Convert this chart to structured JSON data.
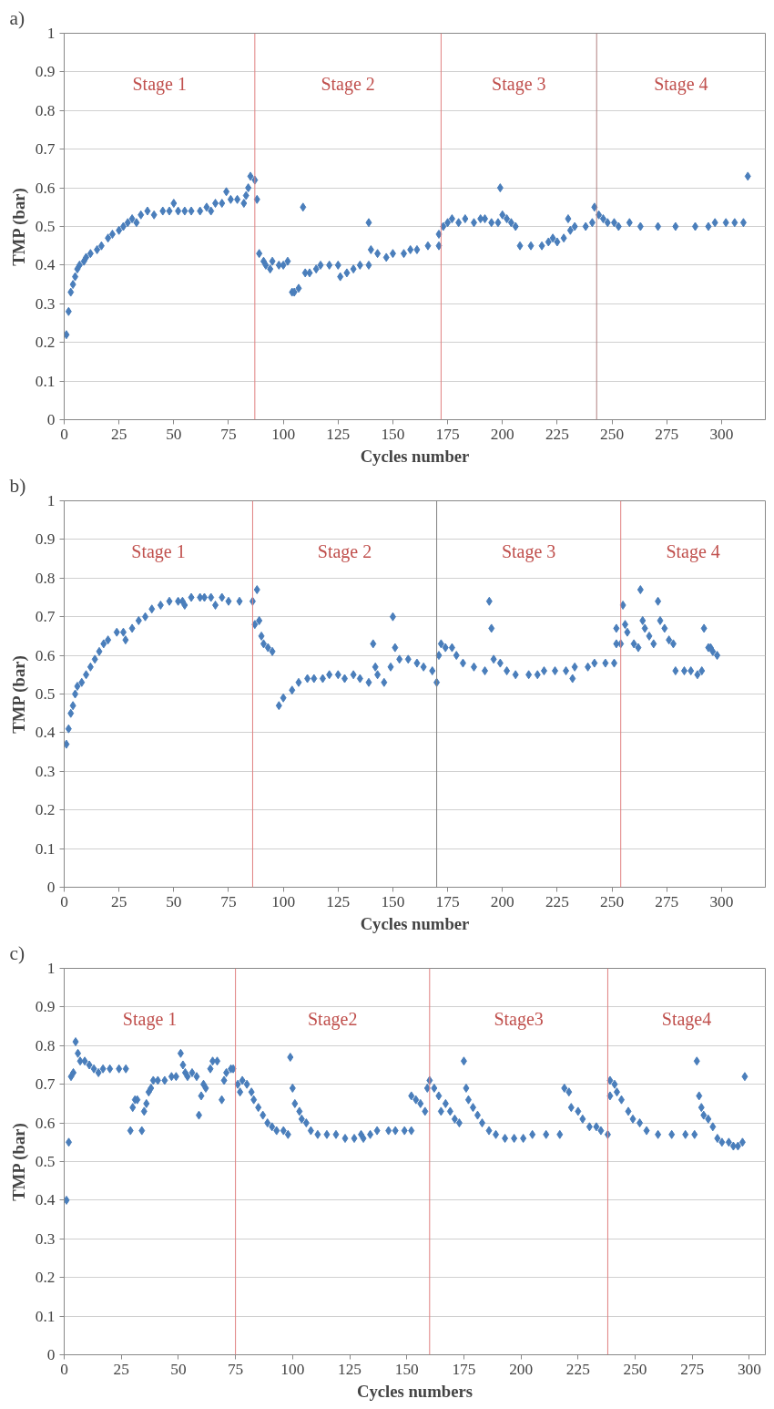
{
  "chart_data": [
    {
      "type": "scatter",
      "title": "a)",
      "xlabel": "Cycles number",
      "ylabel": "TMP (bar)",
      "xlim": [
        0,
        320
      ],
      "ylim": [
        0,
        1
      ],
      "xticks": [
        0,
        25,
        50,
        75,
        100,
        125,
        150,
        175,
        200,
        225,
        250,
        275,
        300
      ],
      "yticks": [
        0,
        0.1,
        0.2,
        0.3,
        0.4,
        0.5,
        0.6,
        0.7,
        0.8,
        0.9,
        1
      ],
      "grid": "y",
      "marker": "diamond",
      "series": [
        {
          "color": "#4a7ebb",
          "x": [
            1,
            2,
            3,
            4,
            5,
            6,
            7,
            9,
            10,
            12,
            15,
            17,
            20,
            22,
            25,
            27,
            29,
            31,
            33,
            35,
            38,
            41,
            45,
            48,
            50,
            52,
            55,
            58,
            62,
            65,
            67,
            69,
            72,
            74,
            76,
            79,
            82,
            83,
            84,
            85,
            87,
            88,
            89,
            91,
            92,
            94,
            95,
            98,
            100,
            102,
            104,
            105,
            107,
            109,
            110,
            112,
            115,
            117,
            121,
            125,
            126,
            129,
            132,
            135,
            139,
            139,
            140,
            143,
            147,
            150,
            155,
            158,
            161,
            166,
            171,
            171,
            173,
            175,
            177,
            180,
            183,
            187,
            190,
            192,
            195,
            198,
            199,
            200,
            202,
            204,
            206,
            208,
            213,
            218,
            221,
            223,
            225,
            228,
            230,
            231,
            233,
            238,
            241,
            242,
            244,
            246,
            248,
            251,
            253,
            258,
            263,
            271,
            279,
            288,
            294,
            297,
            302,
            306,
            310,
            312
          ],
          "values": [
            0.22,
            0.28,
            0.33,
            0.35,
            0.37,
            0.39,
            0.4,
            0.41,
            0.42,
            0.43,
            0.44,
            0.45,
            0.47,
            0.48,
            0.49,
            0.5,
            0.51,
            0.52,
            0.51,
            0.53,
            0.54,
            0.53,
            0.54,
            0.54,
            0.56,
            0.54,
            0.54,
            0.54,
            0.54,
            0.55,
            0.54,
            0.56,
            0.56,
            0.59,
            0.57,
            0.57,
            0.56,
            0.58,
            0.6,
            0.63,
            0.62,
            0.57,
            0.43,
            0.41,
            0.4,
            0.39,
            0.41,
            0.4,
            0.4,
            0.41,
            0.33,
            0.33,
            0.34,
            0.55,
            0.38,
            0.38,
            0.39,
            0.4,
            0.4,
            0.4,
            0.37,
            0.38,
            0.39,
            0.4,
            0.4,
            0.51,
            0.44,
            0.43,
            0.42,
            0.43,
            0.43,
            0.44,
            0.44,
            0.45,
            0.45,
            0.48,
            0.5,
            0.51,
            0.52,
            0.51,
            0.52,
            0.51,
            0.52,
            0.52,
            0.51,
            0.51,
            0.6,
            0.53,
            0.52,
            0.51,
            0.5,
            0.45,
            0.45,
            0.45,
            0.46,
            0.47,
            0.46,
            0.47,
            0.52,
            0.49,
            0.5,
            0.5,
            0.51,
            0.55,
            0.53,
            0.52,
            0.51,
            0.51,
            0.5,
            0.51,
            0.5,
            0.5,
            0.5,
            0.5,
            0.5,
            0.51,
            0.51,
            0.51,
            0.51,
            0.63
          ]
        }
      ],
      "ref_lines": [
        {
          "axis": "x",
          "value": 87,
          "color": "#e08080"
        },
        {
          "axis": "x",
          "value": 172,
          "color": "#e08080"
        },
        {
          "axis": "x",
          "value": 243,
          "color": "#b08080"
        }
      ],
      "annotations": [
        "Stage 1",
        "Stage 2",
        "Stage 3",
        "Stage 4"
      ]
    },
    {
      "type": "scatter",
      "title": "b)",
      "xlabel": "Cycles number",
      "ylabel": "TMP (bar)",
      "xlim": [
        0,
        320
      ],
      "ylim": [
        0,
        1
      ],
      "xticks": [
        0,
        25,
        50,
        75,
        100,
        125,
        150,
        175,
        200,
        225,
        250,
        275,
        300
      ],
      "yticks": [
        0,
        0.1,
        0.2,
        0.3,
        0.4,
        0.5,
        0.6,
        0.7,
        0.8,
        0.9,
        1
      ],
      "grid": "y",
      "marker": "diamond",
      "series": [
        {
          "color": "#4a7ebb",
          "x": [
            1,
            2,
            3,
            4,
            5,
            6,
            8,
            10,
            12,
            14,
            16,
            18,
            20,
            24,
            27,
            28,
            31,
            34,
            37,
            40,
            44,
            48,
            52,
            54,
            55,
            58,
            62,
            64,
            67,
            69,
            72,
            75,
            80,
            86,
            87,
            88,
            89,
            90,
            91,
            93,
            95,
            98,
            100,
            104,
            107,
            111,
            114,
            118,
            121,
            125,
            128,
            132,
            135,
            139,
            141,
            142,
            143,
            146,
            149,
            150,
            151,
            153,
            157,
            161,
            164,
            168,
            170,
            171,
            172,
            174,
            177,
            179,
            182,
            187,
            192,
            194,
            195,
            196,
            199,
            202,
            206,
            212,
            216,
            219,
            224,
            229,
            232,
            233,
            239,
            242,
            247,
            251,
            252,
            252,
            254,
            255,
            256,
            257,
            260,
            262,
            263,
            264,
            265,
            267,
            269,
            271,
            272,
            274,
            276,
            278,
            279,
            283,
            286,
            289,
            291,
            292,
            294,
            295,
            296,
            298
          ],
          "values": [
            0.37,
            0.41,
            0.45,
            0.47,
            0.5,
            0.52,
            0.53,
            0.55,
            0.57,
            0.59,
            0.61,
            0.63,
            0.64,
            0.66,
            0.66,
            0.64,
            0.67,
            0.69,
            0.7,
            0.72,
            0.73,
            0.74,
            0.74,
            0.74,
            0.73,
            0.75,
            0.75,
            0.75,
            0.75,
            0.73,
            0.75,
            0.74,
            0.74,
            0.74,
            0.68,
            0.77,
            0.69,
            0.65,
            0.63,
            0.62,
            0.61,
            0.47,
            0.49,
            0.51,
            0.53,
            0.54,
            0.54,
            0.54,
            0.55,
            0.55,
            0.54,
            0.55,
            0.54,
            0.53,
            0.63,
            0.57,
            0.55,
            0.53,
            0.57,
            0.7,
            0.62,
            0.59,
            0.59,
            0.58,
            0.57,
            0.56,
            0.53,
            0.6,
            0.63,
            0.62,
            0.62,
            0.6,
            0.58,
            0.57,
            0.56,
            0.74,
            0.67,
            0.59,
            0.58,
            0.56,
            0.55,
            0.55,
            0.55,
            0.56,
            0.56,
            0.56,
            0.54,
            0.57,
            0.57,
            0.58,
            0.58,
            0.58,
            0.67,
            0.63,
            0.63,
            0.73,
            0.68,
            0.66,
            0.63,
            0.62,
            0.77,
            0.69,
            0.67,
            0.65,
            0.63,
            0.74,
            0.69,
            0.67,
            0.64,
            0.63,
            0.56,
            0.56,
            0.56,
            0.55,
            0.56,
            0.67,
            0.62,
            0.62,
            0.61,
            0.6
          ]
        }
      ],
      "ref_lines": [
        {
          "axis": "x",
          "value": 86,
          "color": "#e08080"
        },
        {
          "axis": "x",
          "value": 170,
          "color": "#808080"
        },
        {
          "axis": "x",
          "value": 254,
          "color": "#e08080"
        }
      ],
      "annotations": [
        "Stage 1",
        "Stage 2",
        "Stage 3",
        "Stage 4"
      ]
    },
    {
      "type": "scatter",
      "title": "c)",
      "xlabel": "Cycles numbers",
      "ylabel": "TMP (bar)",
      "xlim": [
        0,
        307
      ],
      "ylim": [
        0,
        1
      ],
      "xticks": [
        0,
        25,
        50,
        75,
        100,
        125,
        150,
        175,
        200,
        225,
        250,
        275,
        300
      ],
      "yticks": [
        0,
        0.1,
        0.2,
        0.3,
        0.4,
        0.5,
        0.6,
        0.7,
        0.8,
        0.9,
        1
      ],
      "grid": "y",
      "marker": "diamond",
      "series": [
        {
          "color": "#4a7ebb",
          "x": [
            1,
            2,
            3,
            4,
            5,
            6,
            7,
            9,
            11,
            13,
            15,
            17,
            20,
            24,
            27,
            29,
            30,
            31,
            32,
            34,
            35,
            36,
            37,
            38,
            39,
            41,
            44,
            47,
            49,
            51,
            52,
            53,
            54,
            56,
            58,
            59,
            60,
            61,
            62,
            64,
            65,
            67,
            69,
            70,
            71,
            73,
            74,
            76,
            77,
            78,
            80,
            82,
            83,
            85,
            87,
            89,
            91,
            93,
            96,
            98,
            99,
            100,
            101,
            103,
            104,
            106,
            108,
            111,
            115,
            119,
            123,
            127,
            130,
            131,
            134,
            137,
            142,
            145,
            149,
            152,
            152,
            154,
            156,
            158,
            159,
            160,
            162,
            164,
            165,
            167,
            169,
            171,
            173,
            175,
            176,
            177,
            179,
            181,
            183,
            186,
            189,
            193,
            197,
            201,
            205,
            211,
            217,
            219,
            221,
            222,
            225,
            227,
            230,
            233,
            235,
            238,
            239,
            239,
            241,
            242,
            244,
            247,
            249,
            252,
            255,
            260,
            266,
            272,
            276,
            277,
            278,
            279,
            280,
            282,
            284,
            286,
            288,
            291,
            293,
            295,
            297,
            298
          ],
          "values": [
            0.4,
            0.55,
            0.72,
            0.73,
            0.81,
            0.78,
            0.76,
            0.76,
            0.75,
            0.74,
            0.73,
            0.74,
            0.74,
            0.74,
            0.74,
            0.58,
            0.64,
            0.66,
            0.66,
            0.58,
            0.63,
            0.65,
            0.68,
            0.69,
            0.71,
            0.71,
            0.71,
            0.72,
            0.72,
            0.78,
            0.75,
            0.73,
            0.72,
            0.73,
            0.72,
            0.62,
            0.67,
            0.7,
            0.69,
            0.74,
            0.76,
            0.76,
            0.66,
            0.71,
            0.73,
            0.74,
            0.74,
            0.7,
            0.68,
            0.71,
            0.7,
            0.68,
            0.66,
            0.64,
            0.62,
            0.6,
            0.59,
            0.58,
            0.58,
            0.57,
            0.77,
            0.69,
            0.65,
            0.63,
            0.61,
            0.6,
            0.58,
            0.57,
            0.57,
            0.57,
            0.56,
            0.56,
            0.57,
            0.56,
            0.57,
            0.58,
            0.58,
            0.58,
            0.58,
            0.58,
            0.67,
            0.66,
            0.65,
            0.63,
            0.69,
            0.71,
            0.69,
            0.67,
            0.63,
            0.65,
            0.63,
            0.61,
            0.6,
            0.76,
            0.69,
            0.66,
            0.64,
            0.62,
            0.6,
            0.58,
            0.57,
            0.56,
            0.56,
            0.56,
            0.57,
            0.57,
            0.57,
            0.69,
            0.68,
            0.64,
            0.63,
            0.61,
            0.59,
            0.59,
            0.58,
            0.57,
            0.67,
            0.71,
            0.7,
            0.68,
            0.66,
            0.63,
            0.61,
            0.6,
            0.58,
            0.57,
            0.57,
            0.57,
            0.57,
            0.76,
            0.67,
            0.64,
            0.62,
            0.61,
            0.59,
            0.56,
            0.55,
            0.55,
            0.54,
            0.54,
            0.55,
            0.72
          ]
        }
      ],
      "ref_lines": [
        {
          "axis": "x",
          "value": 75,
          "color": "#e08080"
        },
        {
          "axis": "x",
          "value": 160,
          "color": "#e08080"
        },
        {
          "axis": "x",
          "value": 238,
          "color": "#e08080"
        }
      ],
      "annotations": [
        "Stage 1",
        "Stage2",
        "Stage3",
        "Stage4"
      ]
    }
  ]
}
